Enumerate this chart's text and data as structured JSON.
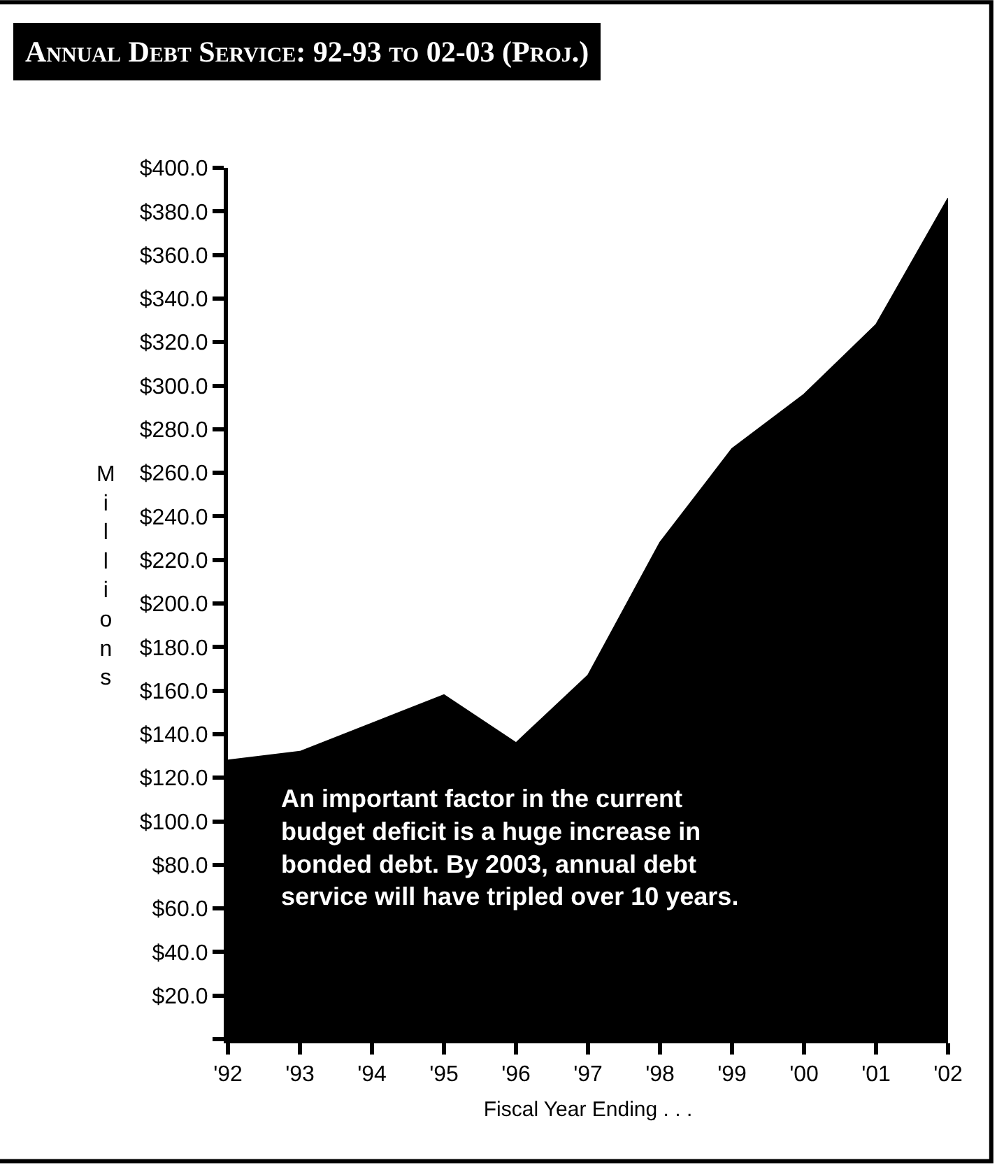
{
  "chart_data": {
    "type": "area",
    "title": "Annual Debt Service: 92-93 to 02-03 (Proj.)",
    "xlabel": "Fiscal Year Ending . . .",
    "ylabel": "Millions",
    "categories": [
      "'92",
      "'93",
      "'94",
      "'95",
      "'96",
      "'97",
      "'98",
      "'99",
      "'00",
      "'01",
      "'02"
    ],
    "series": [
      {
        "color": "#000000",
        "values": [
          128,
          132,
          145,
          158,
          136,
          167,
          228,
          271,
          296,
          328,
          386
        ]
      }
    ],
    "ylim": [
      0,
      400
    ],
    "yticks": [
      {
        "value": 0,
        "label": null
      },
      {
        "value": 20,
        "label": "$20.0"
      },
      {
        "value": 40,
        "label": "$40.0"
      },
      {
        "value": 60,
        "label": "$60.0"
      },
      {
        "value": 80,
        "label": "$80.0"
      },
      {
        "value": 100,
        "label": "$100.0"
      },
      {
        "value": 120,
        "label": "$120.0"
      },
      {
        "value": 140,
        "label": "$140.0"
      },
      {
        "value": 160,
        "label": "$160.0"
      },
      {
        "value": 180,
        "label": "$180.0"
      },
      {
        "value": 200,
        "label": "$200.0"
      },
      {
        "value": 220,
        "label": "$220.0"
      },
      {
        "value": 240,
        "label": "$240.0"
      },
      {
        "value": 260,
        "label": "$260.0"
      },
      {
        "value": 280,
        "label": "$280.0"
      },
      {
        "value": 300,
        "label": "$300.0"
      },
      {
        "value": 320,
        "label": "$320.0"
      },
      {
        "value": 340,
        "label": "$340.0"
      },
      {
        "value": 360,
        "label": "$360.0"
      },
      {
        "value": 380,
        "label": "$380.0"
      },
      {
        "value": 400,
        "label": "$400.0"
      }
    ],
    "annotations": [
      "An important factor in the current budget deficit is a huge increase in bonded debt. By 2003, annual debt service will have tripled over 10 years."
    ]
  }
}
